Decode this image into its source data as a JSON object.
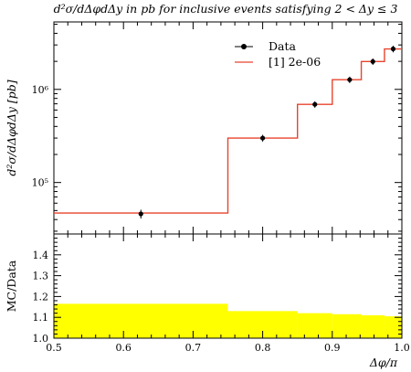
{
  "chart_data": [
    {
      "type": "line",
      "title": "d²σ/dΔφdΔy in pb for inclusive events satisfying 2 < Δy ≤ 3",
      "xlabel": "Δφ/π",
      "ylabel": "d²σ/dΔφdΔy [pb]",
      "xlim": [
        0.5,
        1.0
      ],
      "ylim": [
        28000,
        5300000
      ],
      "yscale": "log",
      "x_ticks": [
        "0.5",
        "0.6",
        "0.7",
        "0.8",
        "0.9",
        "1.0"
      ],
      "y_tick_labels": [
        "10⁵",
        "10⁶"
      ],
      "legend": {
        "placement": "top-right",
        "entries": [
          "Data",
          "[1] 2e-06"
        ]
      },
      "series": [
        {
          "name": "Data",
          "style": "points",
          "color": "#000000",
          "points": [
            {
              "x": 0.625,
              "y": 46000,
              "err": 5000
            },
            {
              "x": 0.8,
              "y": 300000,
              "err": 25000
            },
            {
              "x": 0.875,
              "y": 690000,
              "err": 55000
            },
            {
              "x": 0.925,
              "y": 1270000,
              "err": 100000
            },
            {
              "x": 0.9583,
              "y": 1990000,
              "err": 160000
            },
            {
              "x": 0.9875,
              "y": 2720000,
              "err": 220000
            }
          ]
        },
        {
          "name": "[1] 2e-06",
          "style": "step",
          "color": "#e8442e",
          "bins": [
            {
              "x0": 0.5,
              "x1": 0.75,
              "y": 47000
            },
            {
              "x0": 0.75,
              "x1": 0.85,
              "y": 300000
            },
            {
              "x0": 0.85,
              "x1": 0.9,
              "y": 690000
            },
            {
              "x0": 0.9,
              "x1": 0.9417,
              "y": 1270000
            },
            {
              "x0": 0.9417,
              "x1": 0.975,
              "y": 1990000
            },
            {
              "x0": 0.975,
              "x1": 1.0,
              "y": 2720000
            }
          ]
        }
      ]
    },
    {
      "type": "area",
      "xlabel": "Δφ/π",
      "ylabel": "MC/Data",
      "xlim": [
        0.5,
        1.0
      ],
      "ylim": [
        1.0,
        1.5
      ],
      "x_ticks": [
        "0.5",
        "0.6",
        "0.7",
        "0.8",
        "0.9",
        "1.0"
      ],
      "y_ticks": [
        "1.0",
        "1.1",
        "1.2",
        "1.3",
        "1.4"
      ],
      "band_color": "#ffff00",
      "band": [
        {
          "x0": 0.5,
          "x1": 0.75,
          "lo": 1.0,
          "hi": 1.165
        },
        {
          "x0": 0.75,
          "x1": 0.85,
          "lo": 1.0,
          "hi": 1.13
        },
        {
          "x0": 0.85,
          "x1": 0.9,
          "lo": 1.0,
          "hi": 1.12
        },
        {
          "x0": 0.9,
          "x1": 0.9417,
          "lo": 1.0,
          "hi": 1.115
        },
        {
          "x0": 0.9417,
          "x1": 0.975,
          "lo": 1.0,
          "hi": 1.11
        },
        {
          "x0": 0.975,
          "x1": 1.0,
          "lo": 1.0,
          "hi": 1.105
        }
      ]
    }
  ]
}
